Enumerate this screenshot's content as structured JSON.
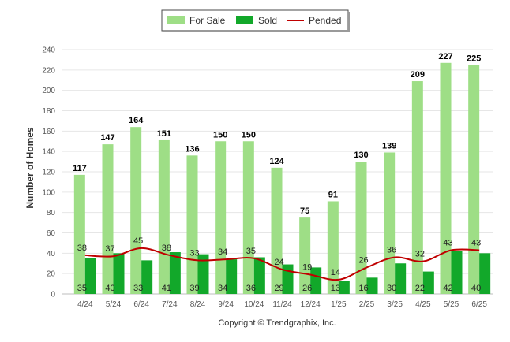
{
  "chart_data": {
    "type": "bar",
    "categories": [
      "4/24",
      "5/24",
      "6/24",
      "7/24",
      "8/24",
      "9/24",
      "10/24",
      "11/24",
      "12/24",
      "1/25",
      "2/25",
      "3/25",
      "4/25",
      "5/25",
      "6/25"
    ],
    "series": [
      {
        "name": "For Sale",
        "type": "bar",
        "color": "#9ede86",
        "values": [
          117,
          147,
          164,
          151,
          136,
          150,
          150,
          124,
          75,
          91,
          130,
          139,
          209,
          227,
          225
        ]
      },
      {
        "name": "Sold",
        "type": "bar",
        "color": "#12a82a",
        "values": [
          35,
          40,
          33,
          41,
          39,
          34,
          36,
          29,
          26,
          13,
          16,
          30,
          22,
          42,
          40
        ]
      },
      {
        "name": "Pended",
        "type": "line",
        "color": "#c00000",
        "values": [
          38,
          37,
          45,
          38,
          33,
          34,
          35,
          24,
          19,
          14,
          26,
          36,
          32,
          43,
          43
        ]
      }
    ],
    "ylabel": "Number of Homes",
    "ylim": [
      0,
      240
    ],
    "yticks": [
      0,
      20,
      40,
      60,
      80,
      100,
      120,
      140,
      160,
      180,
      200,
      220,
      240
    ],
    "grid": true,
    "legend": "top-center"
  },
  "copyright": "Copyright © Trendgraphix, Inc."
}
